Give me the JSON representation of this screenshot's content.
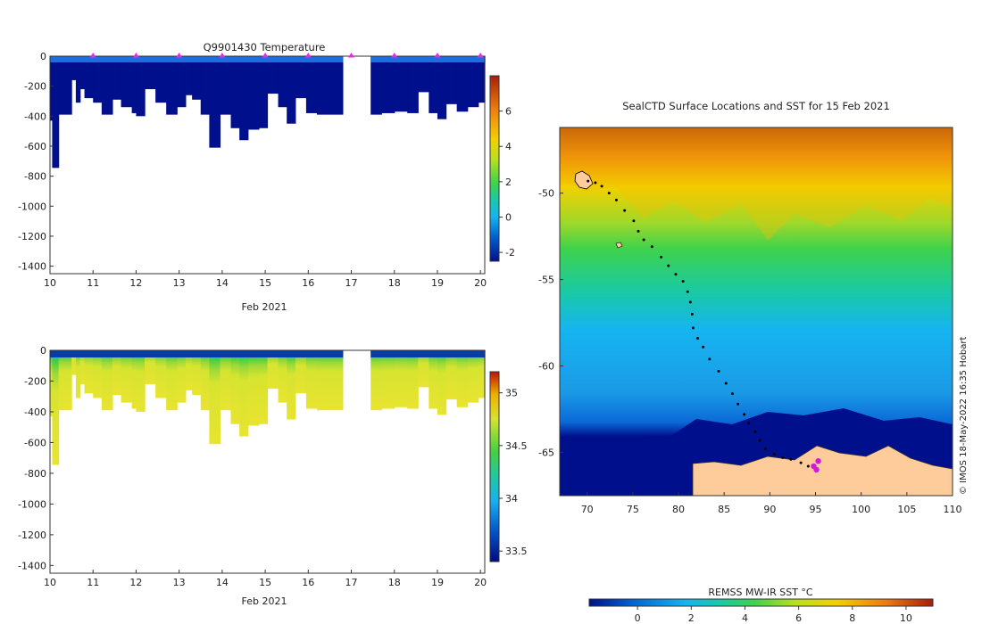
{
  "chart_data": [
    {
      "type": "heatmap",
      "title": "Q9901430  Temperature",
      "xlabel": "Feb 2021",
      "xlim": [
        10,
        20.1
      ],
      "ylim": [
        -1450,
        0
      ],
      "x_ticks": [
        "10",
        "11",
        "12",
        "13",
        "14",
        "15",
        "16",
        "17",
        "18",
        "19",
        "20"
      ],
      "y_ticks": [
        "0",
        "-200",
        "-400",
        "-600",
        "-800",
        "-1000",
        "-1200",
        "-1400"
      ],
      "colorbar": {
        "ticks": [
          "-2",
          "0",
          "2",
          "4",
          "6"
        ],
        "range": [
          -2.5,
          8
        ]
      },
      "marker_days": [
        11,
        12,
        13,
        14,
        15,
        16,
        17,
        18,
        19,
        20
      ],
      "profile_depths": [
        [
          10.0,
          10.05,
          -430
        ],
        [
          10.05,
          10.2,
          -745
        ],
        [
          10.2,
          10.5,
          -390
        ],
        [
          10.5,
          10.6,
          -160
        ],
        [
          10.6,
          10.7,
          -310
        ],
        [
          10.7,
          10.8,
          -220
        ],
        [
          10.8,
          11.0,
          -280
        ],
        [
          11.0,
          11.2,
          -310
        ],
        [
          11.2,
          11.45,
          -390
        ],
        [
          11.45,
          11.65,
          -290
        ],
        [
          11.65,
          11.9,
          -340
        ],
        [
          11.9,
          12.0,
          -380
        ],
        [
          12.0,
          12.2,
          -400
        ],
        [
          12.2,
          12.45,
          -220
        ],
        [
          12.45,
          12.7,
          -310
        ],
        [
          12.7,
          12.95,
          -390
        ],
        [
          12.95,
          13.15,
          -340
        ],
        [
          13.15,
          13.3,
          -260
        ],
        [
          13.3,
          13.5,
          -290
        ],
        [
          13.5,
          13.7,
          -390
        ],
        [
          13.7,
          13.95,
          -610
        ],
        [
          13.95,
          14.2,
          -390
        ],
        [
          14.2,
          14.4,
          -480
        ],
        [
          14.4,
          14.6,
          -560
        ],
        [
          14.6,
          14.85,
          -490
        ],
        [
          14.85,
          15.05,
          -480
        ],
        [
          15.05,
          15.3,
          -250
        ],
        [
          15.3,
          15.5,
          -340
        ],
        [
          15.5,
          15.7,
          -450
        ],
        [
          15.7,
          15.95,
          -280
        ],
        [
          15.95,
          16.2,
          -380
        ],
        [
          16.2,
          16.5,
          -390
        ],
        [
          16.5,
          16.8,
          -390
        ],
        [
          17.45,
          17.7,
          -390
        ],
        [
          17.7,
          18.0,
          -380
        ],
        [
          18.0,
          18.3,
          -370
        ],
        [
          18.3,
          18.55,
          -380
        ],
        [
          18.55,
          18.8,
          -240
        ],
        [
          18.8,
          19.0,
          -380
        ],
        [
          19.0,
          19.2,
          -420
        ],
        [
          19.2,
          19.45,
          -320
        ],
        [
          19.45,
          19.7,
          -370
        ],
        [
          19.7,
          19.95,
          -340
        ],
        [
          19.95,
          20.1,
          -310
        ]
      ]
    },
    {
      "type": "heatmap",
      "title": "",
      "xlabel": "Feb 2021",
      "xlim": [
        10,
        20.1
      ],
      "ylim": [
        -1450,
        0
      ],
      "x_ticks": [
        "10",
        "11",
        "12",
        "13",
        "14",
        "15",
        "16",
        "17",
        "18",
        "19",
        "20"
      ],
      "y_ticks": [
        "0",
        "-200",
        "-400",
        "-600",
        "-800",
        "-1000",
        "-1200",
        "-1400"
      ],
      "colorbar": {
        "ticks": [
          "33.5",
          "34",
          "34.5",
          "35"
        ],
        "range": [
          33.4,
          35.2
        ]
      }
    },
    {
      "type": "map",
      "title": "SealCTD Surface Locations and SST for 15 Feb 2021",
      "x_ticks": [
        "70",
        "75",
        "80",
        "85",
        "90",
        "95",
        "100",
        "105",
        "110"
      ],
      "y_ticks": [
        "-50",
        "-55",
        "-60",
        "-65"
      ],
      "lon_range": [
        67,
        110
      ],
      "lat_range": [
        -67.5,
        -46.2
      ],
      "colorbar": {
        "label": "REMSS MW-IR SST °C",
        "ticks": [
          "0",
          "2",
          "4",
          "6",
          "8",
          "10"
        ],
        "range": [
          -1.8,
          11
        ]
      },
      "track": [
        [
          70.1,
          -49.3
        ],
        [
          70.9,
          -49.4
        ],
        [
          71.6,
          -49.6
        ],
        [
          72.4,
          -50.0
        ],
        [
          73.2,
          -50.4
        ],
        [
          74.1,
          -51.0
        ],
        [
          75.1,
          -51.6
        ],
        [
          75.6,
          -52.2
        ],
        [
          76.2,
          -52.7
        ],
        [
          77.1,
          -53.1
        ],
        [
          78.1,
          -53.7
        ],
        [
          78.9,
          -54.2
        ],
        [
          79.7,
          -54.7
        ],
        [
          80.5,
          -55.1
        ],
        [
          81.0,
          -55.7
        ],
        [
          81.3,
          -56.3
        ],
        [
          81.5,
          -57.0
        ],
        [
          81.6,
          -57.8
        ],
        [
          82.1,
          -58.4
        ],
        [
          82.7,
          -58.9
        ],
        [
          83.4,
          -59.6
        ],
        [
          84.4,
          -60.3
        ],
        [
          85.2,
          -61.0
        ],
        [
          85.9,
          -61.6
        ],
        [
          86.5,
          -62.2
        ],
        [
          87.2,
          -62.8
        ],
        [
          87.7,
          -63.3
        ],
        [
          88.4,
          -63.8
        ],
        [
          88.9,
          -64.3
        ],
        [
          89.5,
          -64.8
        ],
        [
          90.5,
          -65.1
        ],
        [
          91.4,
          -65.3
        ],
        [
          92.3,
          -65.4
        ],
        [
          93.4,
          -65.6
        ],
        [
          94.2,
          -65.8
        ],
        [
          95.0,
          -65.9
        ]
      ],
      "surface_locations": [
        [
          95.3,
          -65.5
        ],
        [
          95.1,
          -66.0
        ],
        [
          94.8,
          -65.8
        ]
      ]
    }
  ],
  "footer_note": "© IMOS 18-May-2022 16:35 Hobart",
  "palette": {
    "temperature": [
      "#000f8c",
      "#0060d0",
      "#16b4f0",
      "#19c9a8",
      "#3ed24c",
      "#b9e01e",
      "#f3d000",
      "#ee7d10",
      "#a91e08"
    ],
    "salinity": [
      "#000a80",
      "#0050c8",
      "#19b0f0",
      "#22c7a0",
      "#44d040",
      "#d6e430",
      "#f0b000",
      "#c01008"
    ],
    "land": "#fdcc9a"
  }
}
